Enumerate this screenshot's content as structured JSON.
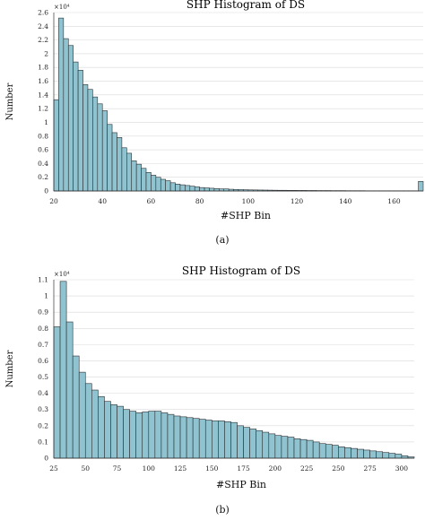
{
  "chart_data": [
    {
      "id": "a",
      "type": "bar",
      "title": "SHP Histogram of DS",
      "xlabel": "#SHP Bin",
      "ylabel": "Number",
      "y_multiplier": "×10⁴",
      "caption": "(a)",
      "xlim": [
        20,
        172
      ],
      "ylim": [
        0,
        2.6
      ],
      "bin_width": 2,
      "x_ticks": [
        20,
        40,
        60,
        80,
        100,
        120,
        140,
        160
      ],
      "y_ticks": [
        0,
        0.2,
        0.4,
        0.6,
        0.8,
        1,
        1.2,
        1.4,
        1.6,
        1.8,
        2,
        2.2,
        2.4,
        2.6
      ],
      "y_tick_labels": [
        "0",
        "0.2",
        "0.4",
        "0.6",
        "0.8",
        "1",
        "1.2",
        "1.4",
        "1.6",
        "1.8",
        "2",
        "2.2",
        "2.4",
        "2.6"
      ],
      "x": [
        20,
        22,
        24,
        26,
        28,
        30,
        32,
        34,
        36,
        38,
        40,
        42,
        44,
        46,
        48,
        50,
        52,
        54,
        56,
        58,
        60,
        62,
        64,
        66,
        68,
        70,
        72,
        74,
        76,
        78,
        80,
        82,
        84,
        86,
        88,
        90,
        92,
        94,
        96,
        98,
        100,
        102,
        104,
        106,
        108,
        110,
        112,
        114,
        116,
        118,
        120,
        122,
        124,
        126,
        128,
        130,
        132,
        134,
        136,
        138,
        140,
        142,
        144,
        146,
        148,
        150,
        152,
        154,
        156,
        158,
        160,
        162,
        164,
        166,
        168,
        170
      ],
      "values": [
        1.33,
        2.52,
        2.22,
        2.12,
        1.88,
        1.76,
        1.55,
        1.48,
        1.37,
        1.27,
        1.17,
        0.97,
        0.85,
        0.78,
        0.63,
        0.55,
        0.44,
        0.39,
        0.33,
        0.27,
        0.23,
        0.2,
        0.17,
        0.15,
        0.12,
        0.1,
        0.09,
        0.08,
        0.07,
        0.06,
        0.05,
        0.045,
        0.04,
        0.035,
        0.03,
        0.03,
        0.025,
        0.022,
        0.02,
        0.018,
        0.016,
        0.015,
        0.014,
        0.013,
        0.012,
        0.011,
        0.01,
        0.01,
        0.009,
        0.009,
        0.008,
        0.008,
        0.007,
        0.007,
        0.006,
        0.006,
        0.006,
        0.005,
        0.005,
        0.005,
        0.004,
        0.004,
        0.004,
        0.004,
        0.003,
        0.003,
        0.003,
        0.003,
        0.003,
        0.003,
        0.003,
        0.003,
        0.003,
        0.003,
        0.003,
        0.14
      ]
    },
    {
      "id": "b",
      "type": "bar",
      "title": "SHP Histogram of DS",
      "xlabel": "#SHP Bin",
      "ylabel": "Number",
      "y_multiplier": "×10⁴",
      "caption": "(b)",
      "xlim": [
        25,
        310
      ],
      "ylim": [
        0,
        1.1
      ],
      "bin_width": 5,
      "x_ticks": [
        25,
        50,
        75,
        100,
        125,
        150,
        175,
        200,
        225,
        250,
        275,
        300
      ],
      "y_ticks": [
        0,
        0.1,
        0.2,
        0.3,
        0.4,
        0.5,
        0.6,
        0.7,
        0.8,
        0.9,
        1,
        1.1
      ],
      "y_tick_labels": [
        "0",
        "0.1",
        "0.2",
        "0.3",
        "0.4",
        "0.5",
        "0.6",
        "0.7",
        "0.8",
        "0.9",
        "1",
        "1.1"
      ],
      "x": [
        25,
        30,
        35,
        40,
        45,
        50,
        55,
        60,
        65,
        70,
        75,
        80,
        85,
        90,
        95,
        100,
        105,
        110,
        115,
        120,
        125,
        130,
        135,
        140,
        145,
        150,
        155,
        160,
        165,
        170,
        175,
        180,
        185,
        190,
        195,
        200,
        205,
        210,
        215,
        220,
        225,
        230,
        235,
        240,
        245,
        250,
        255,
        260,
        265,
        270,
        275,
        280,
        285,
        290,
        295,
        300,
        305
      ],
      "values": [
        0.81,
        1.09,
        0.84,
        0.63,
        0.53,
        0.46,
        0.42,
        0.38,
        0.35,
        0.33,
        0.32,
        0.3,
        0.29,
        0.28,
        0.285,
        0.29,
        0.29,
        0.28,
        0.27,
        0.26,
        0.255,
        0.25,
        0.245,
        0.24,
        0.235,
        0.23,
        0.23,
        0.225,
        0.22,
        0.2,
        0.19,
        0.18,
        0.17,
        0.16,
        0.15,
        0.14,
        0.135,
        0.13,
        0.12,
        0.115,
        0.11,
        0.1,
        0.09,
        0.085,
        0.08,
        0.07,
        0.065,
        0.06,
        0.055,
        0.05,
        0.045,
        0.04,
        0.035,
        0.03,
        0.025,
        0.015,
        0.008
      ]
    }
  ]
}
